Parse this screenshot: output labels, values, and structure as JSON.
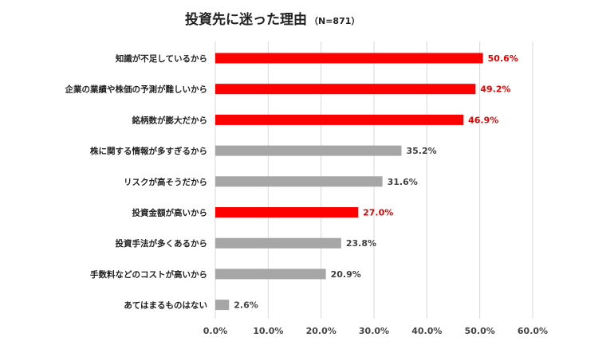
{
  "chart_data": {
    "type": "bar",
    "orientation": "horizontal",
    "title": "投資先に迷った理由",
    "subtitle": "（N=871）",
    "categories": [
      "知識が不足しているから",
      "企業の業績や株価の予測が難しいから",
      "銘柄数が膨大だから",
      "株に関する情報が多すぎるから",
      "リスクが高そうだから",
      "投資金額が高いから",
      "投資手法が多くあるから",
      "手数料などのコストが高いから",
      "あてはまるものはない"
    ],
    "values": [
      50.6,
      49.2,
      46.9,
      35.2,
      31.6,
      27.0,
      23.8,
      20.9,
      2.6
    ],
    "value_labels": [
      "50.6%",
      "49.2%",
      "46.9%",
      "35.2%",
      "31.6%",
      "27.0%",
      "23.8%",
      "20.9%",
      "2.6%"
    ],
    "highlighted": [
      true,
      true,
      true,
      false,
      false,
      true,
      false,
      false,
      false
    ],
    "xlim": [
      0,
      60
    ],
    "xticks": [
      0,
      10,
      20,
      30,
      40,
      50,
      60
    ],
    "xtick_labels": [
      "0.0%",
      "10.0%",
      "20.0%",
      "30.0%",
      "40.0%",
      "50.0%",
      "60.0%"
    ],
    "grid": true,
    "legend": false,
    "colors": {
      "highlight": "#ff0000",
      "normal": "#a6a6a6",
      "highlight_label": "#e60000",
      "normal_label": "#404040",
      "grid": "#d9d9d9"
    }
  }
}
